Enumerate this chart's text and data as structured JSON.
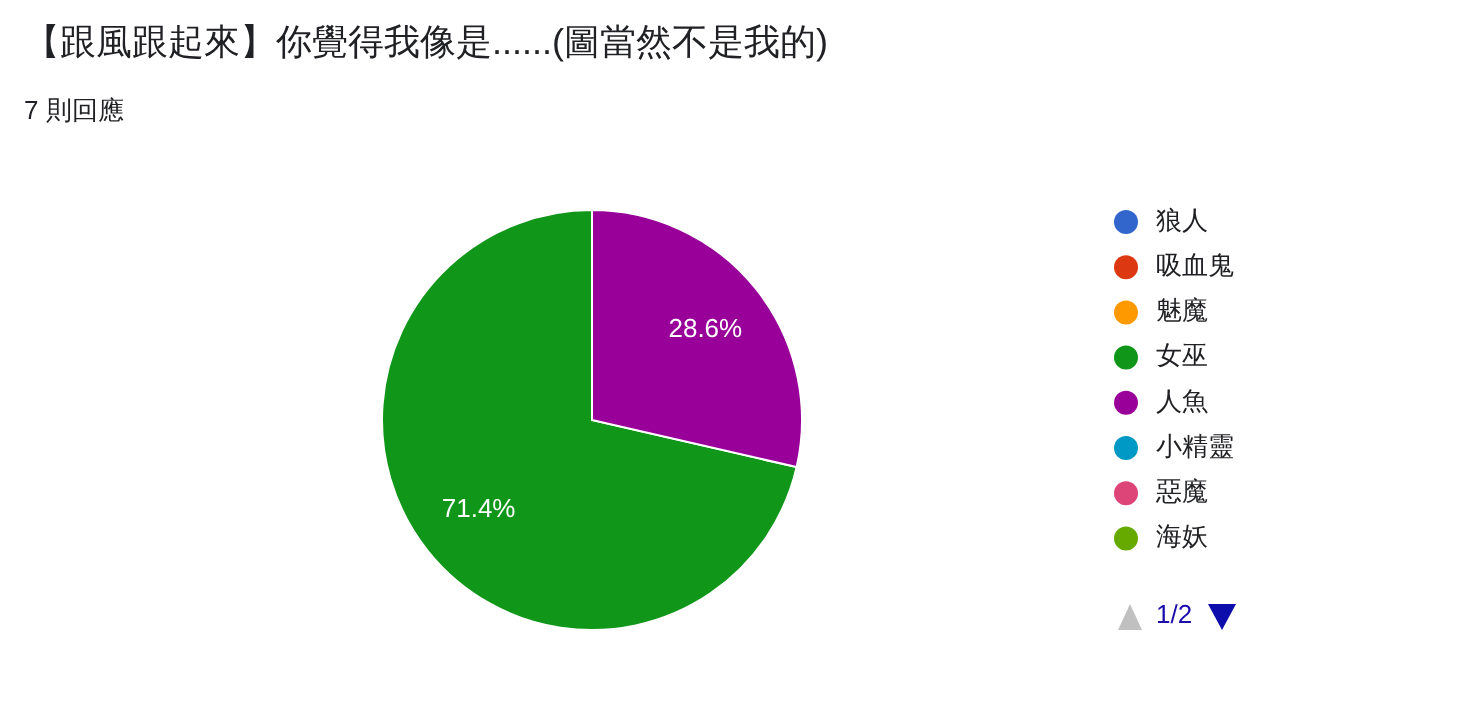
{
  "chart_data": {
    "type": "pie",
    "title": "【跟風跟起來】你覺得我像是......(圖當然不是我的)",
    "subtitle": "7 則回應",
    "categories": [
      "狼人",
      "吸血鬼",
      "魅魔",
      "女巫",
      "人魚",
      "小精靈",
      "惡魔",
      "海妖"
    ],
    "values": [
      0,
      0,
      0,
      71.4,
      28.6,
      0,
      0,
      0
    ],
    "colors": [
      "#3366cc",
      "#dc3912",
      "#ff9900",
      "#109618",
      "#990099",
      "#0099c6",
      "#dd4477",
      "#66aa00"
    ],
    "value_labels": [
      null,
      null,
      null,
      "71.4%",
      "28.6%",
      null,
      null,
      null
    ],
    "legend": "right",
    "annotations": [
      "1/2"
    ]
  }
}
